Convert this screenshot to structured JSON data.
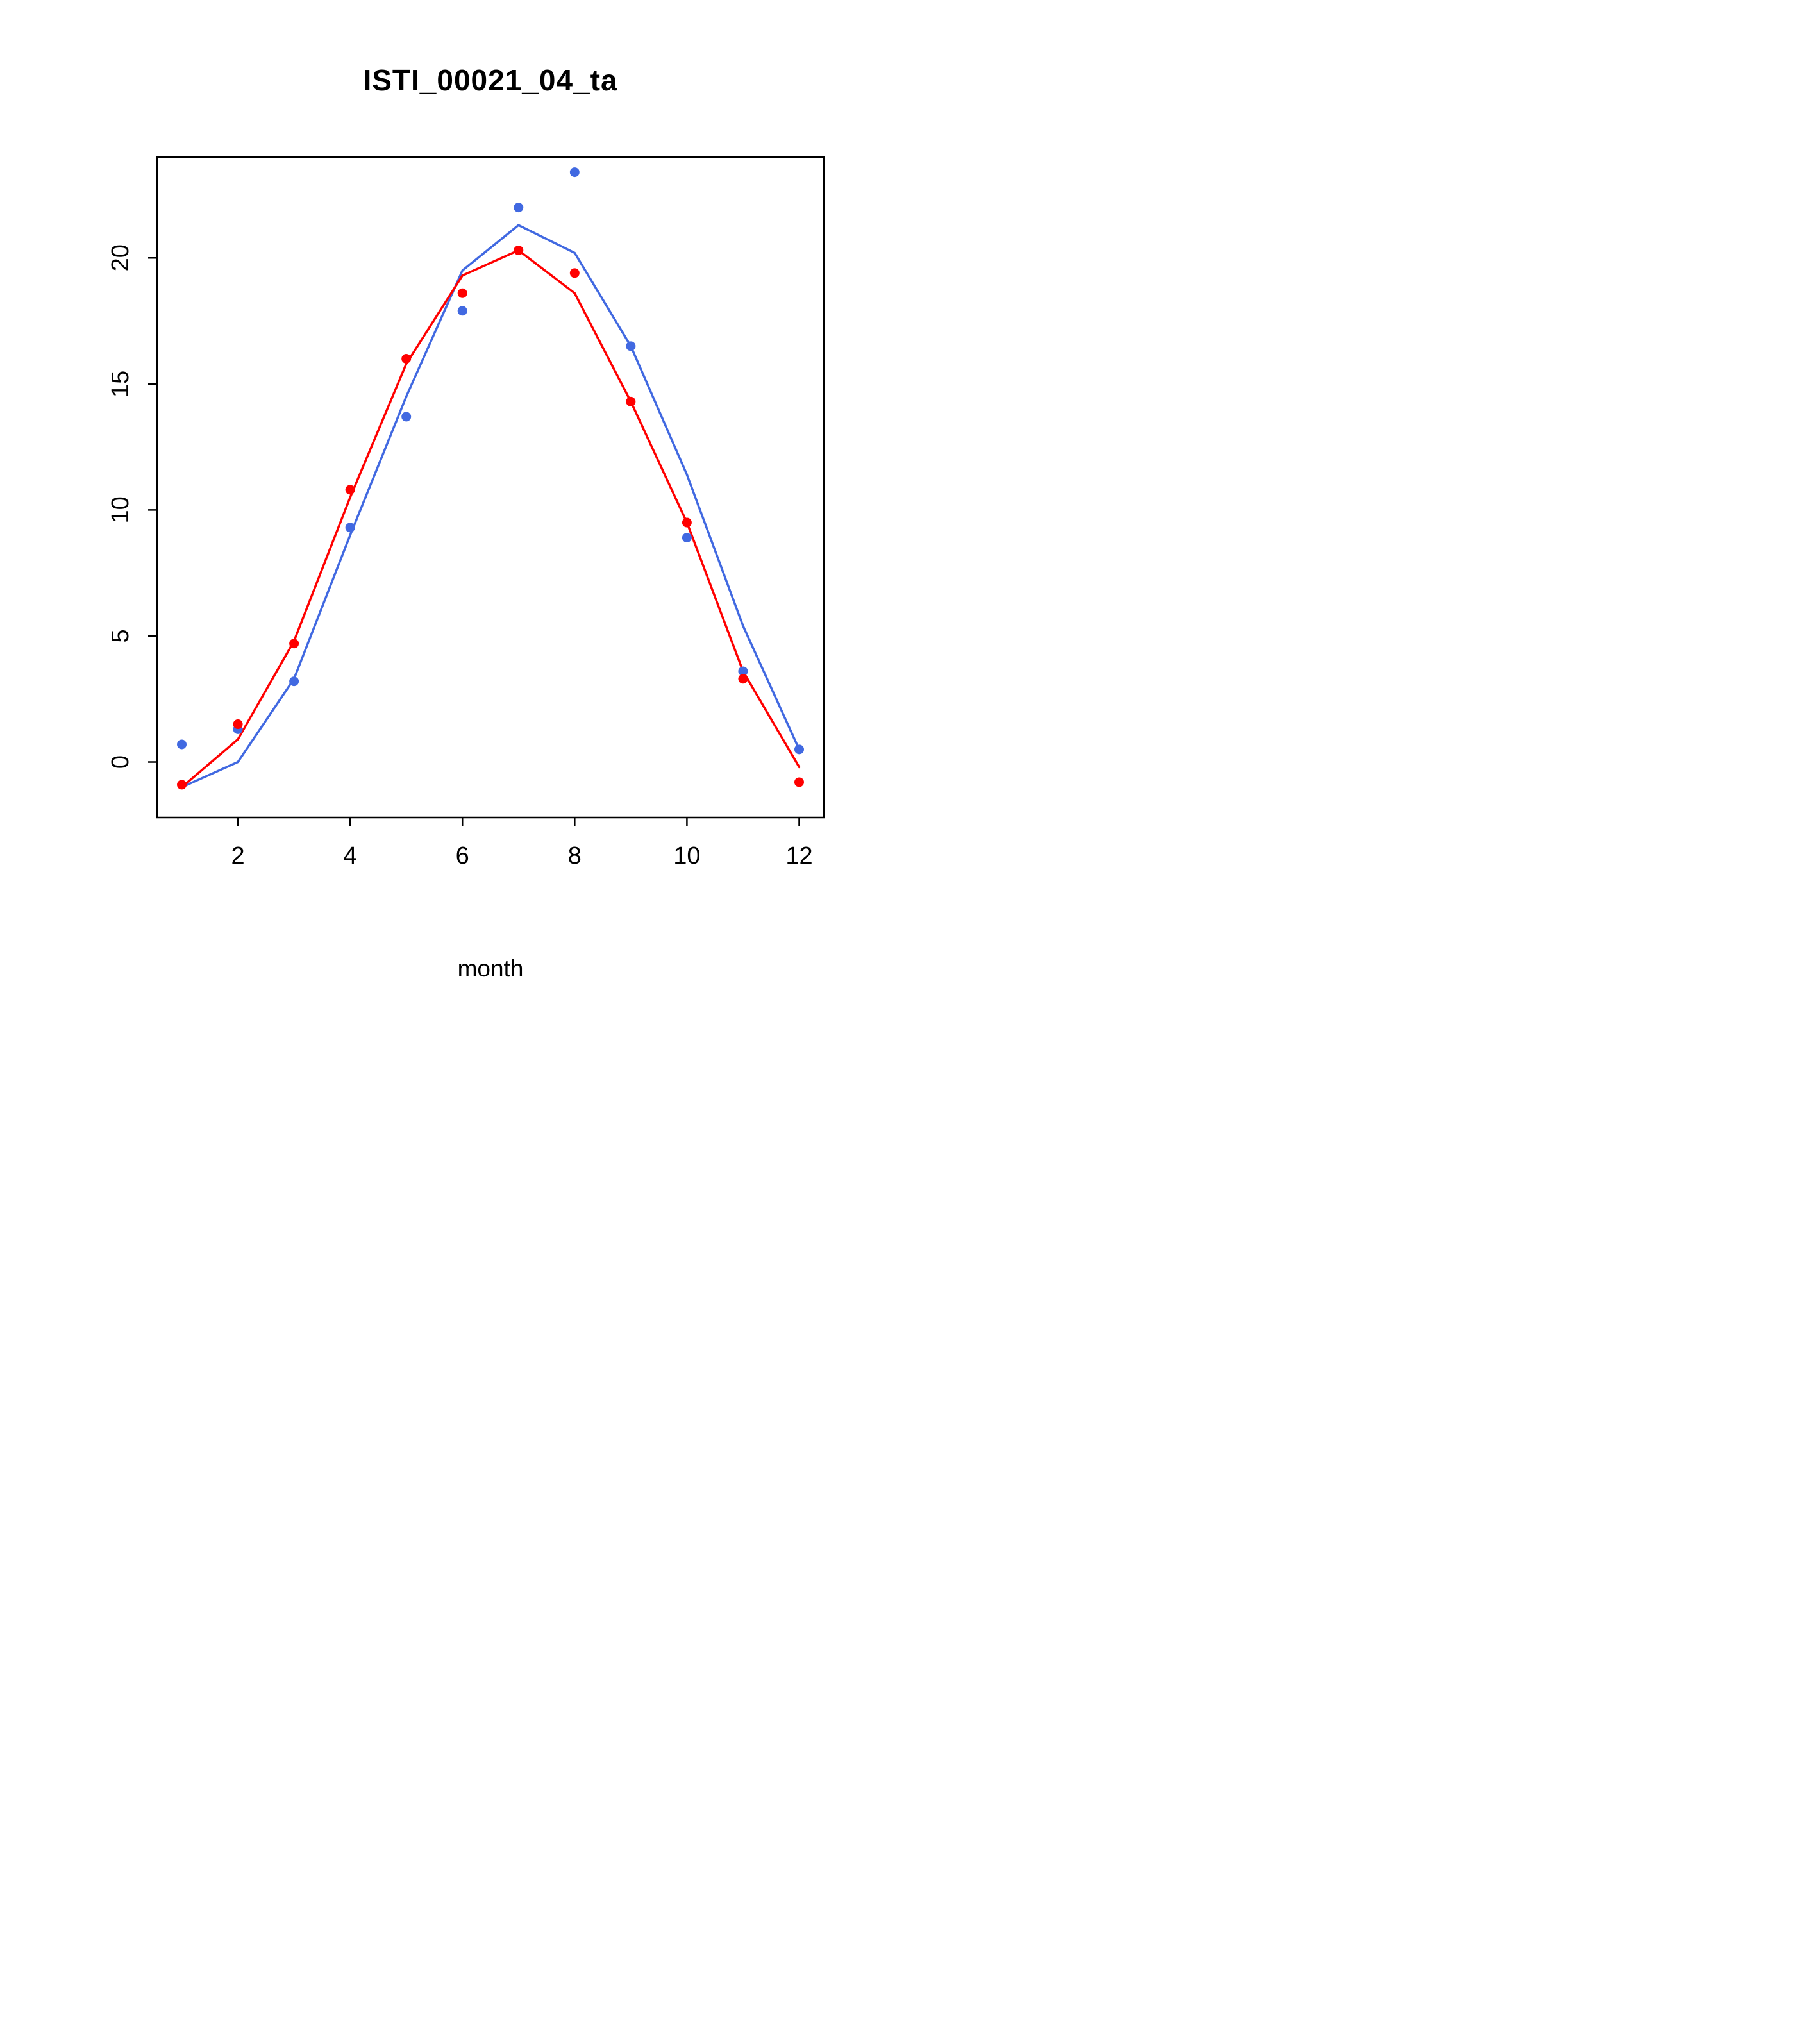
{
  "chart_data": {
    "type": "line",
    "title": "ISTI_00021_04_ta",
    "xlabel": "month",
    "ylabel": "",
    "x": [
      1,
      2,
      3,
      4,
      5,
      6,
      7,
      8,
      9,
      10,
      11,
      12
    ],
    "xlim": [
      0.56,
      12.44
    ],
    "ylim": [
      -2.2,
      24.0
    ],
    "x_ticks": [
      2,
      4,
      6,
      8,
      10,
      12
    ],
    "y_ticks": [
      0,
      5,
      10,
      15,
      20
    ],
    "grid": false,
    "legend": false,
    "series": [
      {
        "name": "blue",
        "color": "#4169e1",
        "marker": "filled-circle",
        "points": [
          0.7,
          1.3,
          3.2,
          9.3,
          13.7,
          17.9,
          22.0,
          23.4,
          16.5,
          8.9,
          3.6,
          0.5
        ],
        "line": [
          -1.0,
          0.0,
          3.3,
          9.0,
          14.5,
          19.5,
          21.3,
          20.2,
          16.5,
          11.4,
          5.4,
          0.5
        ]
      },
      {
        "name": "red",
        "color": "#ff0000",
        "marker": "filled-circle",
        "points": [
          -0.9,
          1.5,
          4.7,
          10.8,
          16.0,
          18.6,
          20.3,
          19.4,
          14.3,
          9.5,
          3.3,
          -0.8
        ],
        "line": [
          -1.0,
          0.9,
          4.8,
          10.5,
          15.8,
          19.3,
          20.3,
          18.6,
          14.3,
          9.5,
          3.6,
          -0.2
        ]
      }
    ]
  }
}
